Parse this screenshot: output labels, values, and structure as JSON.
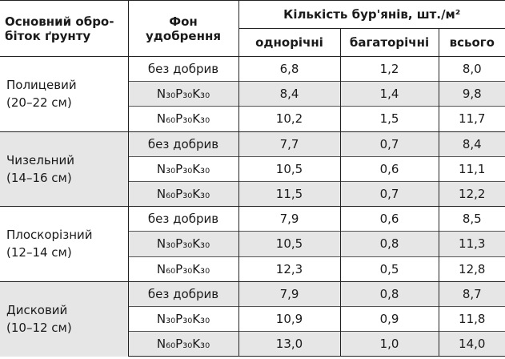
{
  "table": {
    "header": {
      "tillage": [
        "Основний обро-",
        "біток ґрунту"
      ],
      "fertilizer": [
        "Фон",
        "удобрення"
      ],
      "weeds": "Кількість бур'янів, шт./м²",
      "columns": [
        "однорічні",
        "багаторічні",
        "всього"
      ]
    },
    "groups": [
      {
        "label": [
          "Полицевий",
          "(20–22 см)"
        ],
        "rows": [
          [
            "без добрив",
            "6,8",
            "1,2",
            "8,0"
          ],
          [
            "N₃₀P₃₀K₃₀",
            "8,4",
            "1,4",
            "9,8"
          ],
          [
            "N₆₀P₃₀K₃₀",
            "10,2",
            "1,5",
            "11,7"
          ]
        ]
      },
      {
        "label": [
          "Чизельний",
          "(14–16 см)"
        ],
        "rows": [
          [
            "без добрив",
            "7,7",
            "0,7",
            "8,4"
          ],
          [
            "N₃₀P₃₀K₃₀",
            "10,5",
            "0,6",
            "11,1"
          ],
          [
            "N₆₀P₃₀K₃₀",
            "11,5",
            "0,7",
            "12,2"
          ]
        ]
      },
      {
        "label": [
          "Плоскорізний",
          "(12–14 см)"
        ],
        "rows": [
          [
            "без добрив",
            "7,9",
            "0,6",
            "8,5"
          ],
          [
            "N₃₀P₃₀K₃₀",
            "10,5",
            "0,8",
            "11,3"
          ],
          [
            "N₆₀P₃₀K₃₀",
            "12,3",
            "0,5",
            "12,8"
          ]
        ]
      },
      {
        "label": [
          "Дисковий",
          "(10–12 см)"
        ],
        "rows": [
          [
            "без добрив",
            "7,9",
            "0,8",
            "8,7"
          ],
          [
            "N₃₀P₃₀K₃₀",
            "10,9",
            "0,9",
            "11,8"
          ],
          [
            "N₆₀P₃₀K₃₀",
            "13,0",
            "1,0",
            "14,0"
          ]
        ]
      }
    ]
  }
}
